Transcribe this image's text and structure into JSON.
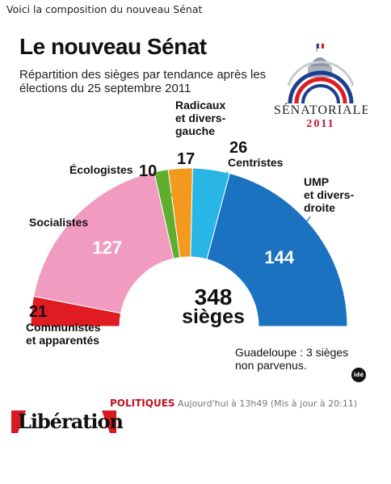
{
  "caption": "Voici la composition du nouveau Sénat",
  "infographic": {
    "title": "Le nouveau Sénat",
    "subtitle": "Répartition des sièges par tendance après les élections du 25 septembre 2011",
    "logo_text": "SÉNATORIALES",
    "logo_year": "2011",
    "total_number": "348",
    "total_label": "sièges",
    "note": "Guadeloupe : 3 sièges non parvenus.",
    "credit": "idé"
  },
  "chart_data": {
    "type": "pie",
    "shape": "half-donut",
    "title": "Le nouveau Sénat",
    "subtitle": "Répartition des sièges par tendance après les élections du 25 septembre 2011",
    "total": 348,
    "series": [
      {
        "name": "Communistes et apparentés",
        "label_lines": [
          "Communistes",
          "et apparentés"
        ],
        "value": 21,
        "color": "#e01b22"
      },
      {
        "name": "Socialistes",
        "label_lines": [
          "Socialistes"
        ],
        "value": 127,
        "color": "#f29bc1"
      },
      {
        "name": "Écologistes",
        "label_lines": [
          "Écologistes"
        ],
        "value": 10,
        "color": "#5fae2e"
      },
      {
        "name": "Radicaux et divers-gauche",
        "label_lines": [
          "Radicaux",
          "et divers-",
          "gauche"
        ],
        "value": 17,
        "color": "#f39a1e"
      },
      {
        "name": "Centristes",
        "label_lines": [
          "Centristes"
        ],
        "value": 26,
        "color": "#27b6e6"
      },
      {
        "name": "UMP et divers-droite",
        "label_lines": [
          "UMP",
          "et divers-",
          "droite"
        ],
        "value": 144,
        "color": "#1a72c0"
      }
    ]
  },
  "footer": {
    "section": "POLITIQUES",
    "time": "Aujourd'hui à 13h49 (Mis à jour à 20:11)",
    "brand": "Libération"
  }
}
